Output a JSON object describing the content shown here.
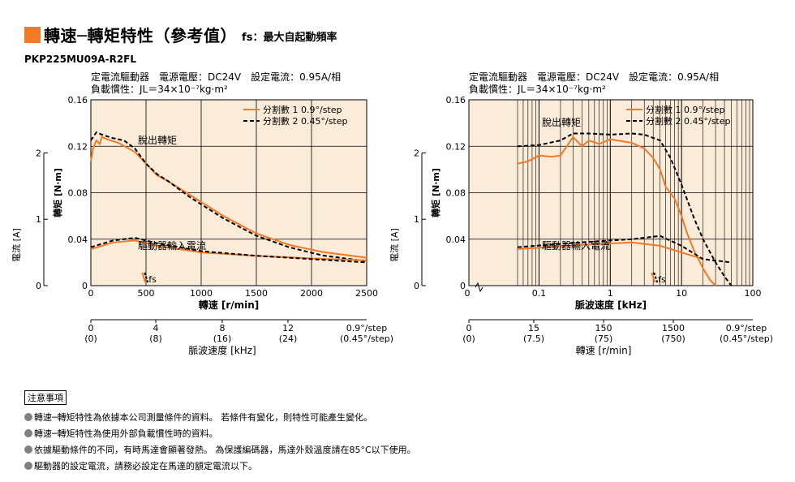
{
  "header": {
    "title": "轉速─轉矩特性（參考值）",
    "subtitle": "fs：最大自起動頻率"
  },
  "model": "PKP225MU09A-R2FL",
  "colors": {
    "accent": "#f07a28",
    "plot_bg": "#fbebd9",
    "series1": "#f07a28",
    "series2": "#000000"
  },
  "left_panel": {
    "cond1": "定電流驅動器　電源電壓：DC24V　設定電流：0.95A/相",
    "cond2": "負載慣性：JL＝34×10⁻⁷kg·m²",
    "legend": [
      "分割數 1  0.9°/step",
      "分割數 2  0.45°/step"
    ],
    "ann_torque": "脫出轉矩",
    "ann_current": "驅動器輸入電流",
    "ann_fs": "fs",
    "y_left_label": "轉矩 [N·m]",
    "y_current_label": "電流 [A]",
    "x_label": "轉速 [r/min]",
    "y_ticks": [
      "0",
      "0.04",
      "0.08",
      "0.12",
      "0.16"
    ],
    "current_ticks": [
      "0",
      "1",
      "2"
    ],
    "x_ticks": [
      "0",
      "500",
      "1000",
      "1500",
      "2000",
      "2500"
    ],
    "sub_ticks_top": [
      "0",
      "4",
      "8",
      "12",
      "0.9°/step"
    ],
    "sub_ticks_bottom": [
      "(0)",
      "(8)",
      "(16)",
      "(24)",
      "(0.45°/step)"
    ],
    "sub_label": "脈波速度 [kHz]"
  },
  "right_panel": {
    "cond1": "定電流驅動器　電源電壓：DC24V　設定電流：0.95A/相",
    "cond2": "負載慣性：JL＝34×10⁻⁷kg·m²",
    "legend": [
      "分割數 1  0.9°/step",
      "分割數 2  0.45°/step"
    ],
    "ann_torque": "脫出轉矩",
    "ann_current": "驅動器輸入電流",
    "ann_fs": "fs",
    "y_left_label": "轉矩 [N·m]",
    "y_current_label": "電流 [A]",
    "x_label": "脈波速度 [kHz]",
    "y_ticks": [
      "0",
      "0.04",
      "0.08",
      "0.12",
      "0.16"
    ],
    "current_ticks": [
      "0",
      "1",
      "2"
    ],
    "x_ticks": [
      "0",
      "0.1",
      "1",
      "10",
      "100"
    ],
    "sub_ticks_top": [
      "0",
      "15",
      "150",
      "1500",
      "0.9°/step"
    ],
    "sub_ticks_bottom": [
      "(0)",
      "(7.5)",
      "(75)",
      "(750)",
      "(0.45°/step)"
    ],
    "sub_label": "轉速 [r/min]"
  },
  "notes": {
    "title": "注意事項",
    "items": [
      "轉速─轉矩特性為依據本公司測量條件的資料。 若條件有變化，則特性可能產生變化。",
      "轉速─轉矩特性為使用外部負載慣性時的資料。",
      "依據驅動條件的不同，有時馬達會顯著發熱。 為保護編碼器，馬達外殼溫度請在85°C以下使用。",
      "驅動器的設定電流，請務必設定在馬達的額定電流以下。"
    ]
  },
  "chart_data": [
    {
      "type": "line",
      "xlabel": "轉速 [r/min]",
      "ylabel": "轉矩 [N·m]",
      "xlim": [
        0,
        2500
      ],
      "ylim": [
        0,
        0.16
      ],
      "y2label": "電流 [A]",
      "y2lim": [
        0,
        2.8
      ],
      "series": [
        {
          "name": "分割數 1  0.9°/step",
          "kind": "torque",
          "x": [
            0,
            20,
            50,
            80,
            100,
            150,
            250,
            400,
            500,
            600,
            700,
            900,
            1200,
            1500,
            1800,
            2100,
            2500
          ],
          "y": [
            0.107,
            0.118,
            0.125,
            0.122,
            0.128,
            0.126,
            0.123,
            0.115,
            0.105,
            0.095,
            0.09,
            0.078,
            0.06,
            0.045,
            0.035,
            0.029,
            0.024
          ]
        },
        {
          "name": "分割數 2  0.45°/step",
          "kind": "torque",
          "x": [
            0,
            50,
            100,
            200,
            300,
            400,
            500,
            600,
            700,
            900,
            1200,
            1500,
            1800,
            2100,
            2500
          ],
          "y": [
            0.125,
            0.132,
            0.13,
            0.127,
            0.125,
            0.118,
            0.105,
            0.096,
            0.09,
            0.076,
            0.058,
            0.043,
            0.033,
            0.026,
            0.021
          ]
        },
        {
          "name": "分割數 1  0.9°/step",
          "kind": "current",
          "x": [
            0,
            200,
            400,
            600,
            1000,
            1500,
            2000,
            2500
          ],
          "y": [
            0.55,
            0.65,
            0.68,
            0.6,
            0.5,
            0.45,
            0.41,
            0.38
          ]
        },
        {
          "name": "分割數 2  0.45°/step",
          "kind": "current",
          "x": [
            0,
            200,
            400,
            600,
            1000,
            1500,
            2000,
            2500
          ],
          "y": [
            0.58,
            0.68,
            0.72,
            0.64,
            0.52,
            0.45,
            0.4,
            0.35
          ]
        }
      ],
      "fs": 480
    },
    {
      "type": "line",
      "xlabel": "脈波速度 [kHz]",
      "ylabel": "轉矩 [N·m]",
      "xscale": "log",
      "xlim": [
        0.01,
        100
      ],
      "ylim": [
        0,
        0.16
      ],
      "y2label": "電流 [A]",
      "y2lim": [
        0,
        2.8
      ],
      "series": [
        {
          "name": "分割數 1  0.9°/step",
          "kind": "torque",
          "x": [
            0.05,
            0.07,
            0.1,
            0.15,
            0.2,
            0.3,
            0.4,
            0.5,
            0.7,
            1,
            2,
            3,
            4,
            5,
            6,
            8,
            10,
            12,
            15,
            20,
            25,
            30
          ],
          "y": [
            0.105,
            0.107,
            0.112,
            0.111,
            0.112,
            0.128,
            0.12,
            0.125,
            0.122,
            0.126,
            0.123,
            0.118,
            0.11,
            0.1,
            0.085,
            0.075,
            0.06,
            0.045,
            0.03,
            0.015,
            0.005,
            0
          ]
        },
        {
          "name": "分割數 2  0.45°/step",
          "kind": "torque",
          "x": [
            0.05,
            0.1,
            0.2,
            0.3,
            0.5,
            1,
            2,
            3,
            5,
            7,
            10,
            15,
            20,
            30,
            40,
            50
          ],
          "y": [
            0.12,
            0.121,
            0.125,
            0.131,
            0.131,
            0.13,
            0.131,
            0.13,
            0.125,
            0.11,
            0.087,
            0.058,
            0.04,
            0.02,
            0.008,
            0
          ]
        },
        {
          "name": "分割數 1  0.9°/step",
          "kind": "current",
          "x": [
            0.05,
            0.5,
            2,
            5,
            10,
            20
          ],
          "y": [
            0.55,
            0.62,
            0.65,
            0.6,
            0.5,
            0.4
          ]
        },
        {
          "name": "分割數 2  0.45°/step",
          "kind": "current",
          "x": [
            0.05,
            0.5,
            2,
            5,
            10,
            20,
            50
          ],
          "y": [
            0.58,
            0.66,
            0.7,
            0.75,
            0.6,
            0.4,
            0.35
          ]
        }
      ],
      "fs": 4
    }
  ]
}
